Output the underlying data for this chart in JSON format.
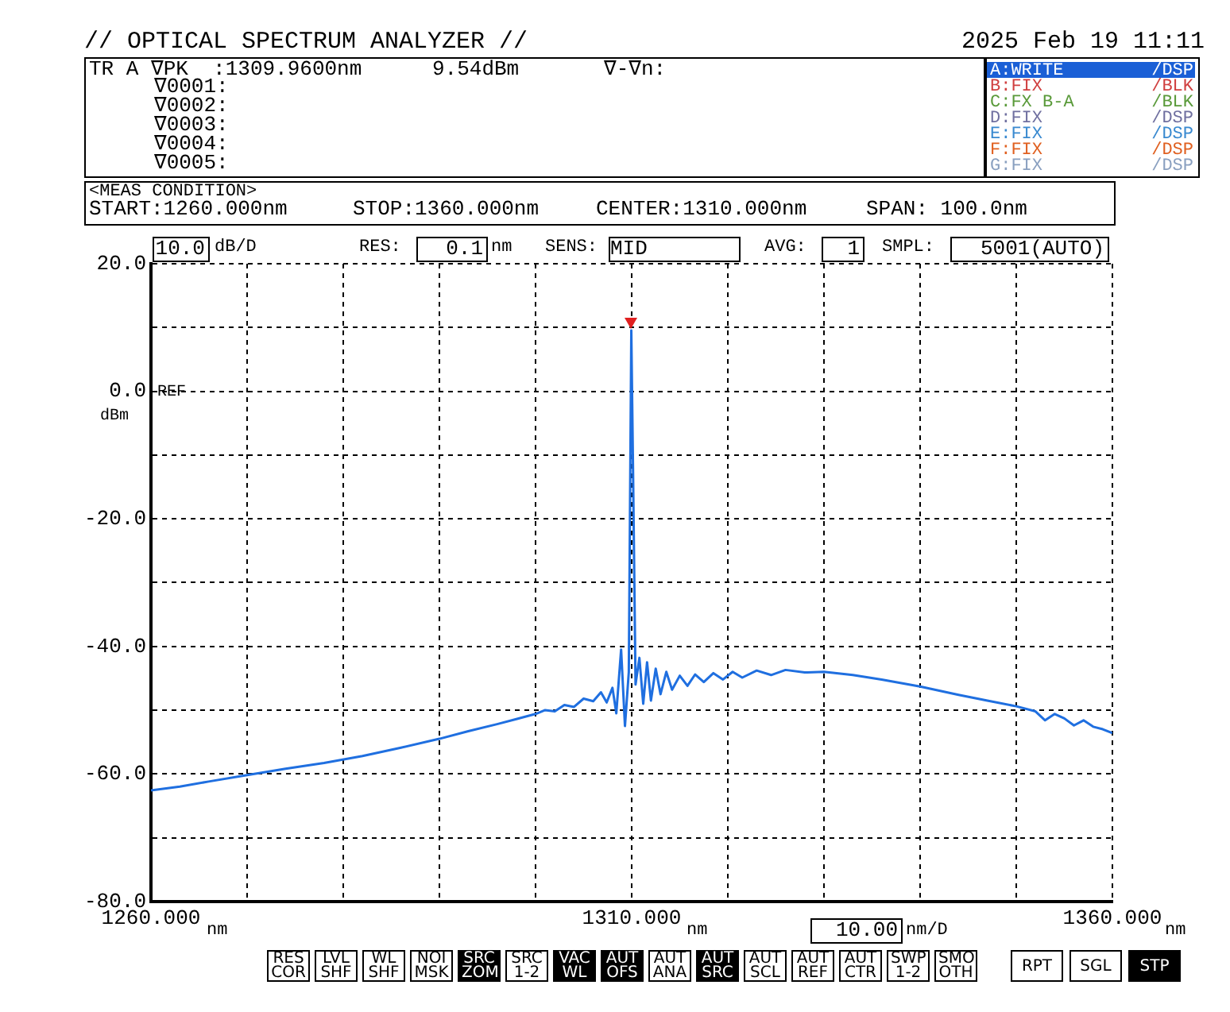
{
  "chart_data": {
    "type": "line",
    "title": "// OPTICAL SPECTRUM ANALYZER //",
    "subtitle": "2025 Feb 19 11:11",
    "annotations": [
      "TR A ∇PK  :1309.9600nm",
      "9.54dBm",
      "∇-∇n:",
      "∇0001:",
      "∇0002:",
      "∇0003:",
      "∇0004:",
      "∇0005:",
      "A:WRITE",
      "/DSP",
      "B:FIX",
      "/BLK",
      "C:FX B-A",
      "/BLK",
      "D:FIX",
      "/DSP",
      "E:FIX",
      "/DSP",
      "F:FIX",
      "/DSP",
      "G:FIX",
      "/DSP",
      "<MEAS CONDITION>",
      "START:1260.000nm",
      "STOP:1360.000nm",
      "CENTER:1310.000nm",
      "SPAN: 100.0nm",
      "10.0",
      "dB/D",
      "RES:",
      "0.1",
      "nm",
      "SENS:",
      "MID",
      "AVG:",
      "1",
      "SMPL:",
      "5001(AUTO)",
      "dBm",
      "nm",
      "nm",
      "10.00",
      "nm/D",
      "nm",
      "RES COR",
      "LVL SHF",
      "WL SHF",
      "NOI MSK",
      "SRC ZOM",
      "SRC 1-2",
      "VAC WL",
      "AUT OFS",
      "AUT ANA",
      "AUT SRC",
      "AUT SCL",
      "AUT REF",
      "AUT CTR",
      "SWP 1-2",
      "SMO OTH",
      "RPT",
      "SGL",
      "STP",
      "REF"
    ],
    "xlim": [
      1260,
      1360
    ],
    "xticks": [
      {
        "value": 1260,
        "label": "1260.000"
      },
      {
        "value": 1270,
        "label": null
      },
      {
        "value": 1280,
        "label": null
      },
      {
        "value": 1290,
        "label": null
      },
      {
        "value": 1300,
        "label": null
      },
      {
        "value": 1310,
        "label": "1310.000"
      },
      {
        "value": 1320,
        "label": null
      },
      {
        "value": 1330,
        "label": null
      },
      {
        "value": 1340,
        "label": null
      },
      {
        "value": 1350,
        "label": null
      },
      {
        "value": 1360,
        "label": "1360.000"
      }
    ],
    "ylim": [
      -80,
      20
    ],
    "yticks": [
      {
        "value": -80,
        "label": "-80.0"
      },
      {
        "value": -70,
        "label": null
      },
      {
        "value": -60,
        "label": "-60.0"
      },
      {
        "value": -50,
        "label": null
      },
      {
        "value": -40,
        "label": "-40.0"
      },
      {
        "value": -30,
        "label": null
      },
      {
        "value": -20,
        "label": "-20.0"
      },
      {
        "value": -10,
        "label": null
      },
      {
        "value": 0,
        "label": "0.0"
      },
      {
        "value": 10,
        "label": null
      },
      {
        "value": 20,
        "label": "20.0"
      }
    ],
    "grid": true,
    "marker": "none",
    "line_style": "solid",
    "series": [
      {
        "color": "#1f6fe0",
        "x": [
          1260,
          1263,
          1266,
          1270,
          1274,
          1278,
          1282,
          1286,
          1290,
          1293,
          1296,
          1298,
          1300,
          1301,
          1302,
          1303,
          1304,
          1305,
          1306,
          1306.8,
          1307.4,
          1308,
          1308.4,
          1308.9,
          1309.3,
          1309.7,
          1309.96,
          1310.15,
          1310.4,
          1310.8,
          1311.2,
          1311.6,
          1312,
          1312.5,
          1313,
          1313.6,
          1314.2,
          1315,
          1315.8,
          1316.6,
          1317.5,
          1318.5,
          1319.5,
          1320.5,
          1321.5,
          1323,
          1324.5,
          1326,
          1328,
          1330,
          1333,
          1336,
          1340,
          1344,
          1347,
          1350,
          1352,
          1353,
          1354,
          1355,
          1356,
          1357,
          1358,
          1359,
          1360
        ],
        "values": [
          -62.6,
          -62,
          -61.2,
          -60.2,
          -59.2,
          -58.3,
          -57.2,
          -55.9,
          -54.5,
          -53.3,
          -52.2,
          -51.4,
          -50.6,
          -50,
          -50.2,
          -49.2,
          -49.5,
          -48.2,
          -48.6,
          -47.2,
          -48.8,
          -46.5,
          -50.5,
          -40.5,
          -52.5,
          -44,
          9.54,
          -13.5,
          -46,
          -41.8,
          -49,
          -42.5,
          -48.5,
          -43.5,
          -47.5,
          -44,
          -46.8,
          -44.6,
          -46.2,
          -44.4,
          -45.6,
          -44.2,
          -45.2,
          -44,
          -44.9,
          -43.8,
          -44.5,
          -43.7,
          -44.1,
          -44,
          -44.5,
          -45.2,
          -46.3,
          -47.6,
          -48.5,
          -49.4,
          -50.2,
          -51.6,
          -50.6,
          -51.3,
          -52.4,
          -51.6,
          -52.6,
          -53,
          -53.6
        ]
      }
    ]
  }
}
